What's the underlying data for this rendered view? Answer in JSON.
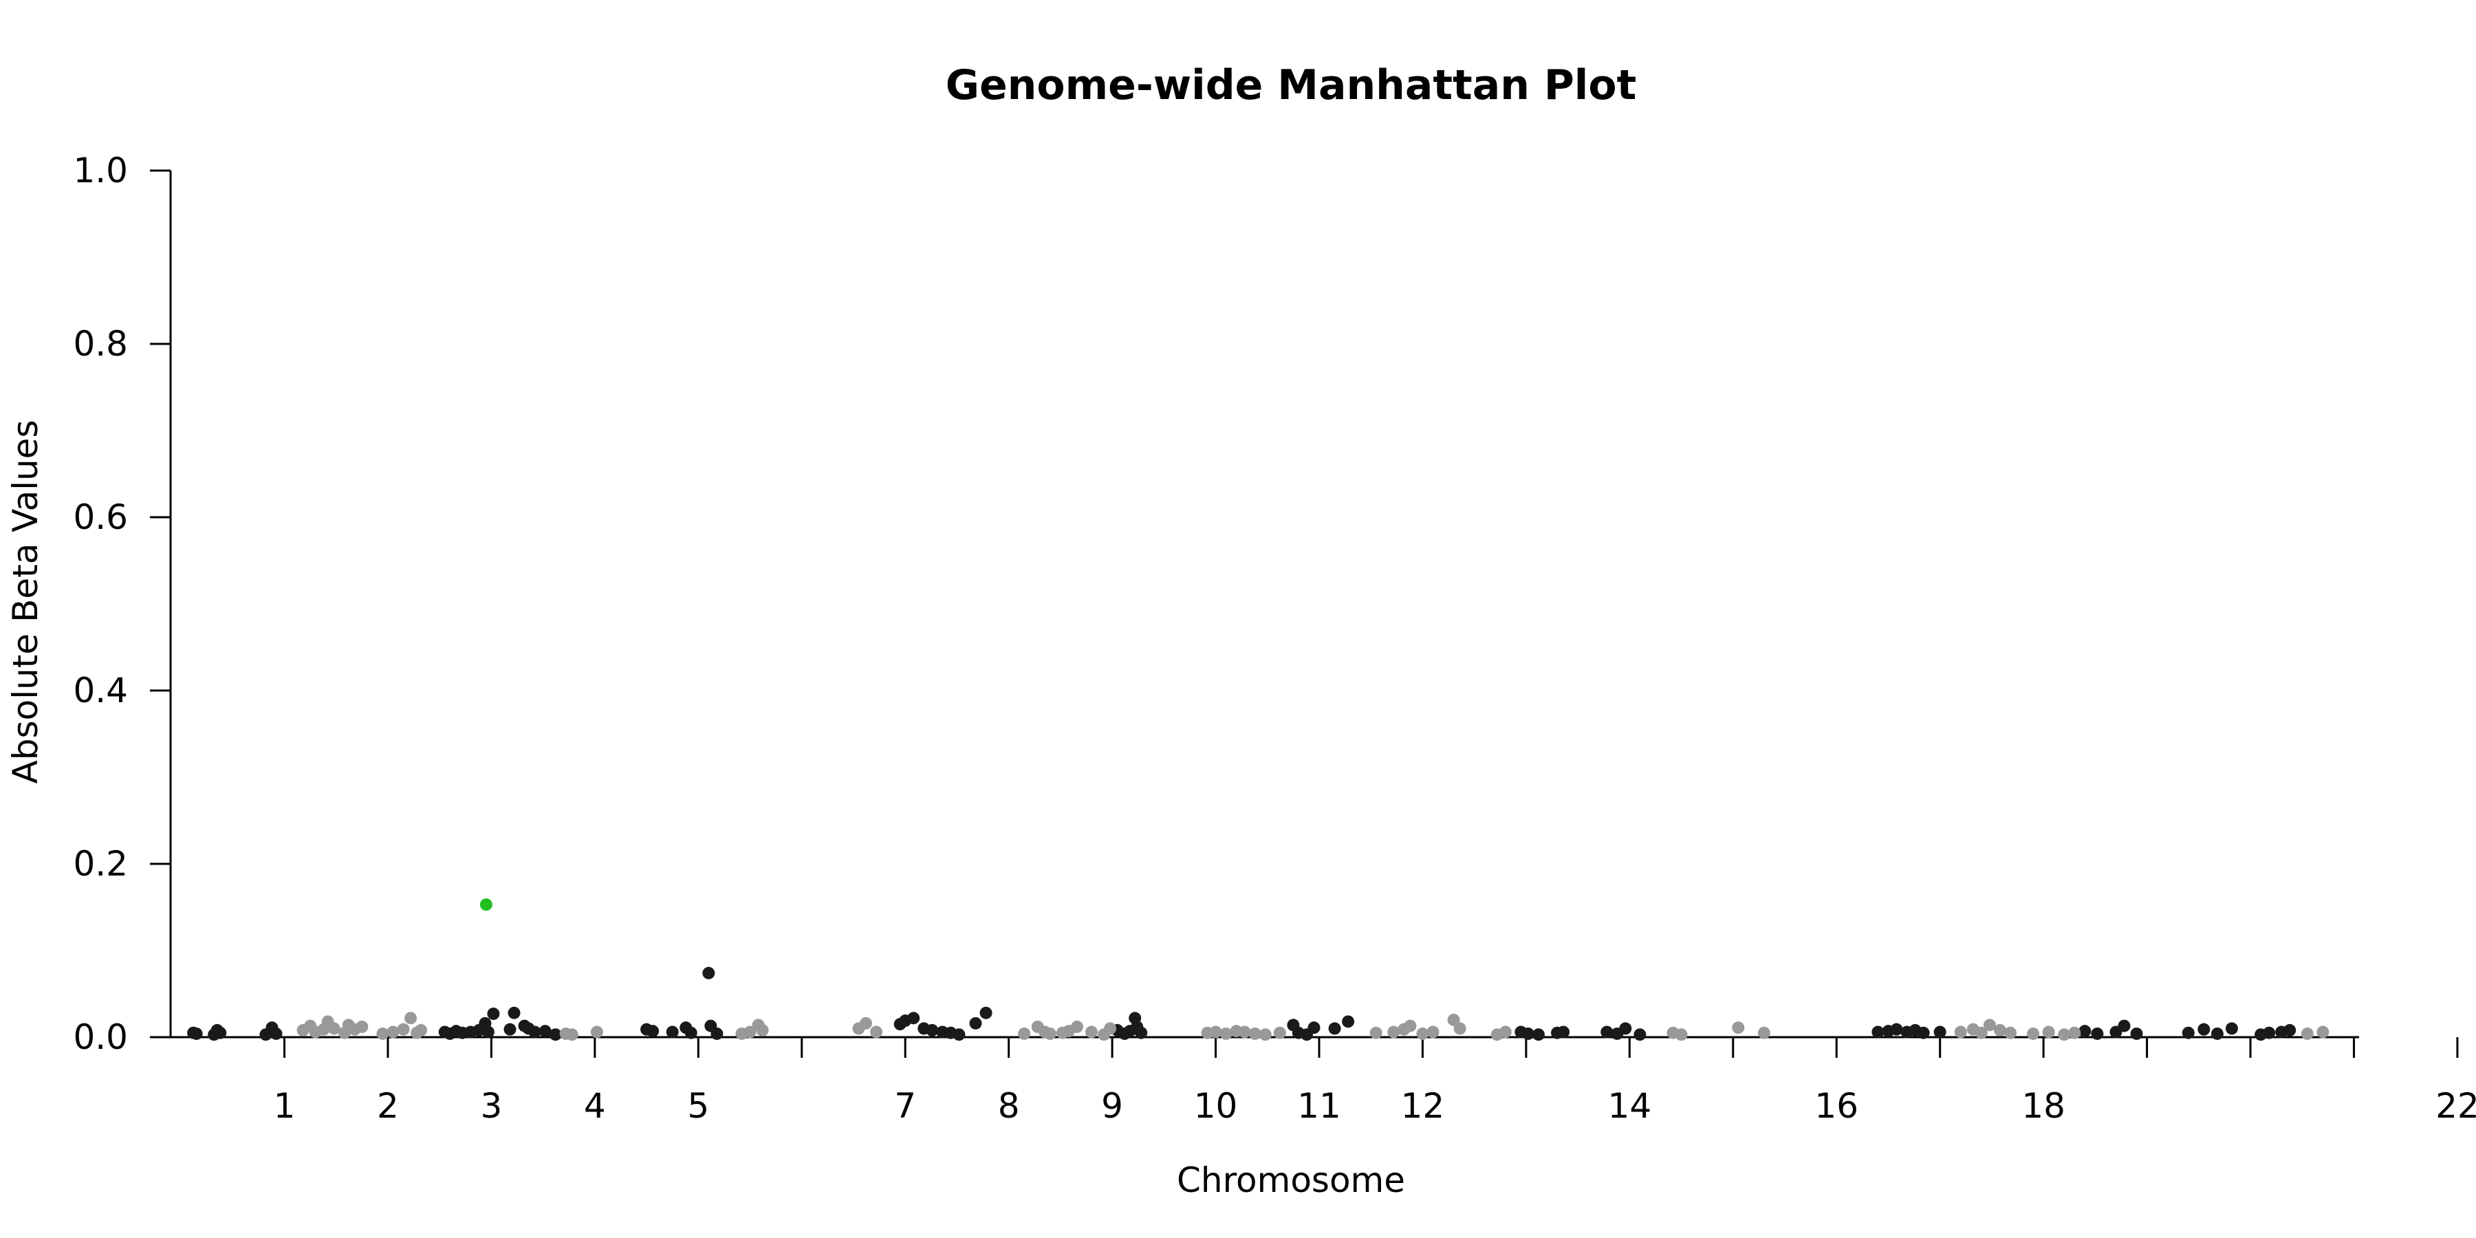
{
  "chart_data": {
    "type": "scatter",
    "title": "Genome-wide Manhattan Plot",
    "xlabel": "Chromosome",
    "ylabel": "Absolute Beta Values",
    "ylim": [
      0,
      1.0
    ],
    "yticks": [
      "0.0",
      "0.2",
      "0.4",
      "0.6",
      "0.8",
      "1.0"
    ],
    "grid": false,
    "legend": "none",
    "colors": {
      "odd_chromosome": "#1a1a1a",
      "even_chromosome": "#999999",
      "highlight": "#22c01f"
    },
    "chromosome_tick_labels": [
      "1",
      "2",
      "3",
      "4",
      "5",
      "7",
      "8",
      "9",
      "10",
      "11",
      "12",
      "14",
      "16",
      "18",
      "22"
    ],
    "chromosome_tick_positions": [
      1,
      2,
      3,
      4,
      5,
      7,
      8,
      9,
      10,
      11,
      12,
      14,
      16,
      18,
      22
    ],
    "chromosome_boundaries": [
      1,
      2,
      3,
      4,
      5,
      6,
      7,
      8,
      9,
      10,
      11,
      12,
      13,
      14,
      15,
      16,
      17,
      18,
      19,
      20,
      21,
      22
    ],
    "series": [
      {
        "color_group": "odd_chromosome",
        "points": [
          [
            0.12,
            0.005
          ],
          [
            0.15,
            0.004
          ],
          [
            0.32,
            0.003
          ],
          [
            0.35,
            0.008
          ],
          [
            0.38,
            0.005
          ],
          [
            0.82,
            0.003
          ],
          [
            0.88,
            0.011
          ],
          [
            0.92,
            0.004
          ],
          [
            2.55,
            0.006
          ],
          [
            2.6,
            0.004
          ],
          [
            2.66,
            0.007
          ],
          [
            2.72,
            0.005
          ],
          [
            2.8,
            0.006
          ],
          [
            2.88,
            0.008
          ],
          [
            2.94,
            0.016
          ],
          [
            2.97,
            0.006
          ],
          [
            3.02,
            0.027
          ],
          [
            3.18,
            0.009
          ],
          [
            3.22,
            0.028
          ],
          [
            3.32,
            0.013
          ],
          [
            3.36,
            0.01
          ],
          [
            3.42,
            0.006
          ],
          [
            3.52,
            0.007
          ],
          [
            3.62,
            0.003
          ],
          [
            4.5,
            0.009
          ],
          [
            4.56,
            0.007
          ],
          [
            4.75,
            0.006
          ],
          [
            4.88,
            0.011
          ],
          [
            4.93,
            0.005
          ],
          [
            5.1,
            0.074
          ],
          [
            5.12,
            0.013
          ],
          [
            5.18,
            0.004
          ],
          [
            6.95,
            0.015
          ],
          [
            7.0,
            0.019
          ],
          [
            7.08,
            0.022
          ],
          [
            7.18,
            0.01
          ],
          [
            7.26,
            0.008
          ],
          [
            7.36,
            0.006
          ],
          [
            7.44,
            0.005
          ],
          [
            7.52,
            0.003
          ],
          [
            7.68,
            0.016
          ],
          [
            7.78,
            0.028
          ],
          [
            9.05,
            0.008
          ],
          [
            9.12,
            0.004
          ],
          [
            9.17,
            0.007
          ],
          [
            9.22,
            0.022
          ],
          [
            9.24,
            0.012
          ],
          [
            9.28,
            0.005
          ],
          [
            10.75,
            0.014
          ],
          [
            10.8,
            0.005
          ],
          [
            10.88,
            0.003
          ],
          [
            10.95,
            0.011
          ],
          [
            11.15,
            0.01
          ],
          [
            11.28,
            0.018
          ],
          [
            12.95,
            0.006
          ],
          [
            13.02,
            0.004
          ],
          [
            13.12,
            0.003
          ],
          [
            13.3,
            0.005
          ],
          [
            13.36,
            0.006
          ],
          [
            13.78,
            0.006
          ],
          [
            13.88,
            0.004
          ],
          [
            13.96,
            0.01
          ],
          [
            14.1,
            0.003
          ],
          [
            16.4,
            0.006
          ],
          [
            16.5,
            0.007
          ],
          [
            16.58,
            0.009
          ],
          [
            16.68,
            0.006
          ],
          [
            16.76,
            0.008
          ],
          [
            16.84,
            0.005
          ],
          [
            17.0,
            0.006
          ],
          [
            18.4,
            0.007
          ],
          [
            18.52,
            0.004
          ],
          [
            18.7,
            0.006
          ],
          [
            18.78,
            0.013
          ],
          [
            18.9,
            0.004
          ],
          [
            19.4,
            0.005
          ],
          [
            19.55,
            0.009
          ],
          [
            19.68,
            0.004
          ],
          [
            19.82,
            0.01
          ],
          [
            20.1,
            0.003
          ],
          [
            20.18,
            0.005
          ],
          [
            20.3,
            0.006
          ],
          [
            20.38,
            0.008
          ]
        ]
      },
      {
        "color_group": "even_chromosome",
        "points": [
          [
            1.18,
            0.008
          ],
          [
            1.25,
            0.013
          ],
          [
            1.3,
            0.006
          ],
          [
            1.38,
            0.009
          ],
          [
            1.42,
            0.018
          ],
          [
            1.48,
            0.01
          ],
          [
            1.58,
            0.005
          ],
          [
            1.62,
            0.014
          ],
          [
            1.68,
            0.009
          ],
          [
            1.75,
            0.012
          ],
          [
            1.95,
            0.004
          ],
          [
            2.05,
            0.006
          ],
          [
            2.15,
            0.009
          ],
          [
            2.22,
            0.022
          ],
          [
            2.28,
            0.005
          ],
          [
            2.32,
            0.008
          ],
          [
            3.72,
            0.004
          ],
          [
            3.78,
            0.003
          ],
          [
            4.02,
            0.006
          ],
          [
            5.42,
            0.004
          ],
          [
            5.5,
            0.006
          ],
          [
            5.58,
            0.014
          ],
          [
            5.62,
            0.008
          ],
          [
            6.55,
            0.01
          ],
          [
            6.62,
            0.016
          ],
          [
            6.72,
            0.006
          ],
          [
            8.15,
            0.004
          ],
          [
            8.28,
            0.012
          ],
          [
            8.35,
            0.006
          ],
          [
            8.4,
            0.004
          ],
          [
            8.52,
            0.005
          ],
          [
            8.58,
            0.007
          ],
          [
            8.66,
            0.012
          ],
          [
            8.8,
            0.006
          ],
          [
            8.92,
            0.003
          ],
          [
            8.98,
            0.01
          ],
          [
            9.92,
            0.005
          ],
          [
            10.0,
            0.006
          ],
          [
            10.1,
            0.004
          ],
          [
            10.2,
            0.007
          ],
          [
            10.28,
            0.006
          ],
          [
            10.38,
            0.004
          ],
          [
            10.48,
            0.003
          ],
          [
            10.62,
            0.005
          ],
          [
            11.55,
            0.005
          ],
          [
            11.72,
            0.006
          ],
          [
            11.82,
            0.009
          ],
          [
            11.88,
            0.013
          ],
          [
            12.0,
            0.004
          ],
          [
            12.1,
            0.006
          ],
          [
            12.3,
            0.02
          ],
          [
            12.36,
            0.01
          ],
          [
            12.72,
            0.003
          ],
          [
            12.8,
            0.006
          ],
          [
            14.42,
            0.005
          ],
          [
            14.5,
            0.003
          ],
          [
            15.05,
            0.011
          ],
          [
            15.3,
            0.005
          ],
          [
            17.2,
            0.006
          ],
          [
            17.32,
            0.009
          ],
          [
            17.4,
            0.005
          ],
          [
            17.48,
            0.014
          ],
          [
            17.58,
            0.008
          ],
          [
            17.68,
            0.005
          ],
          [
            17.9,
            0.004
          ],
          [
            18.05,
            0.006
          ],
          [
            18.2,
            0.003
          ],
          [
            18.3,
            0.005
          ],
          [
            20.55,
            0.004
          ],
          [
            20.7,
            0.006
          ]
        ]
      },
      {
        "color_group": "highlight",
        "points": [
          [
            2.95,
            0.153
          ]
        ]
      }
    ]
  }
}
